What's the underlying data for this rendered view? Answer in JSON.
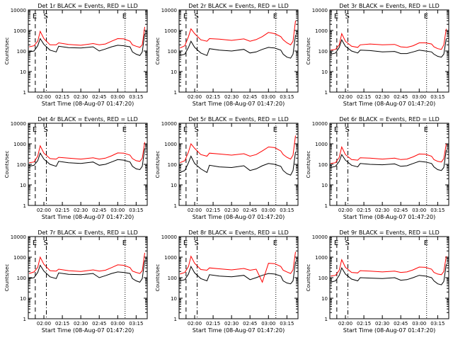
{
  "figure": {
    "start_time_label": "Start Time (08-Aug-07 01:47:20)"
  },
  "chart_data": {
    "type": "line",
    "layout": "3x3 grid",
    "y_scale": "log",
    "ylim": [
      1,
      10000
    ],
    "y_tick_labels": [
      "1",
      "10",
      "100",
      "1000",
      "10000"
    ],
    "ylabel": "Counts/sec",
    "xlabel": "Start Time (08-Aug-07 01:47:20)",
    "xlim": [
      "01:47:20",
      "03:24:00"
    ],
    "x_ticks": [
      "02:00",
      "02:15",
      "02:30",
      "02:45",
      "03:00",
      "03:15"
    ],
    "series_colors": {
      "events": "#000000",
      "lld": "#ff0000"
    },
    "markers": [
      {
        "label": "E",
        "time": "01:53",
        "style": "dashed"
      },
      {
        "label": "S",
        "time": "02:02",
        "style": "dash-dot"
      },
      {
        "label": "E",
        "time": "03:06",
        "style": "dotted"
      }
    ],
    "panels": [
      {
        "title": "Det 1r BLACK = Events, RED = LLD",
        "x": [
          "01:48",
          "01:52",
          "01:55",
          "01:57",
          "02:00",
          "02:05",
          "02:10",
          "02:12",
          "02:20",
          "02:30",
          "02:40",
          "02:45",
          "02:50",
          "02:55",
          "03:00",
          "03:05",
          "03:10",
          "03:12",
          "03:15",
          "03:18",
          "03:20",
          "03:22"
        ],
        "events": [
          90,
          100,
          180,
          400,
          210,
          110,
          90,
          170,
          145,
          140,
          160,
          100,
          125,
          160,
          190,
          180,
          160,
          90,
          70,
          60,
          90,
          700
        ],
        "lld": [
          160,
          180,
          300,
          900,
          400,
          200,
          200,
          250,
          210,
          190,
          230,
          200,
          220,
          300,
          400,
          390,
          300,
          200,
          170,
          150,
          200,
          1500
        ]
      },
      {
        "title": "Det 2r BLACK = Events, RED = LLD",
        "x": [
          "01:48",
          "01:52",
          "01:55",
          "01:57",
          "02:00",
          "02:05",
          "02:10",
          "02:12",
          "02:20",
          "02:30",
          "02:40",
          "02:45",
          "02:50",
          "02:55",
          "03:00",
          "03:05",
          "03:10",
          "03:12",
          "03:15",
          "03:18",
          "03:20",
          "03:22"
        ],
        "events": [
          60,
          70,
          150,
          300,
          150,
          80,
          60,
          130,
          110,
          100,
          120,
          80,
          90,
          120,
          150,
          140,
          110,
          70,
          50,
          45,
          70,
          600
        ],
        "lld": [
          140,
          180,
          500,
          1200,
          700,
          350,
          300,
          400,
          380,
          330,
          390,
          300,
          360,
          500,
          800,
          700,
          500,
          350,
          250,
          200,
          300,
          3000
        ]
      },
      {
        "title": "Det 3r BLACK = Events, RED = LLD",
        "x": [
          "01:48",
          "01:52",
          "01:55",
          "01:57",
          "02:00",
          "02:05",
          "02:10",
          "02:12",
          "02:20",
          "02:30",
          "02:40",
          "02:45",
          "02:50",
          "02:55",
          "03:00",
          "03:05",
          "03:10",
          "03:12",
          "03:15",
          "03:18",
          "03:20",
          "03:22"
        ],
        "events": [
          70,
          80,
          150,
          350,
          170,
          100,
          80,
          110,
          105,
          90,
          95,
          75,
          75,
          90,
          110,
          100,
          90,
          70,
          55,
          50,
          70,
          400
        ],
        "lld": [
          110,
          120,
          200,
          700,
          300,
          170,
          150,
          200,
          220,
          200,
          210,
          160,
          150,
          180,
          250,
          250,
          220,
          160,
          130,
          120,
          200,
          1200
        ]
      },
      {
        "title": "Det 4r BLACK = Events, RED = LLD",
        "x": [
          "01:48",
          "01:52",
          "01:55",
          "01:57",
          "02:00",
          "02:05",
          "02:10",
          "02:12",
          "02:20",
          "02:30",
          "02:40",
          "02:45",
          "02:50",
          "02:55",
          "03:00",
          "03:05",
          "03:10",
          "03:12",
          "03:15",
          "03:18",
          "03:20",
          "03:22"
        ],
        "events": [
          80,
          90,
          150,
          350,
          180,
          100,
          80,
          140,
          120,
          110,
          130,
          90,
          100,
          130,
          170,
          160,
          130,
          80,
          60,
          55,
          80,
          600
        ],
        "lld": [
          120,
          130,
          250,
          800,
          350,
          190,
          180,
          220,
          200,
          180,
          210,
          180,
          200,
          260,
          360,
          350,
          280,
          190,
          150,
          140,
          200,
          1200
        ]
      },
      {
        "title": "Det 5r BLACK = Events, RED = LLD",
        "x": [
          "01:48",
          "01:52",
          "01:55",
          "01:57",
          "02:00",
          "02:05",
          "02:10",
          "02:12",
          "02:20",
          "02:30",
          "02:40",
          "02:45",
          "02:50",
          "02:55",
          "03:00",
          "03:05",
          "03:10",
          "03:12",
          "03:15",
          "03:18",
          "03:20",
          "03:22"
        ],
        "events": [
          40,
          50,
          120,
          250,
          110,
          60,
          40,
          90,
          75,
          70,
          85,
          50,
          60,
          85,
          110,
          100,
          80,
          50,
          35,
          30,
          50,
          400
        ],
        "lld": [
          120,
          150,
          400,
          1000,
          600,
          300,
          250,
          350,
          320,
          280,
          330,
          250,
          300,
          450,
          700,
          650,
          450,
          300,
          220,
          180,
          280,
          2500
        ]
      },
      {
        "title": "Det 6r BLACK = Events, RED = LLD",
        "x": [
          "01:48",
          "01:52",
          "01:55",
          "01:57",
          "02:00",
          "02:05",
          "02:10",
          "02:12",
          "02:20",
          "02:30",
          "02:40",
          "02:45",
          "02:50",
          "02:55",
          "03:00",
          "03:05",
          "03:10",
          "03:12",
          "03:15",
          "03:18",
          "03:20",
          "03:22"
        ],
        "events": [
          70,
          80,
          140,
          300,
          160,
          90,
          75,
          110,
          100,
          95,
          105,
          80,
          85,
          110,
          140,
          130,
          110,
          75,
          55,
          50,
          70,
          500
        ],
        "lld": [
          110,
          120,
          220,
          700,
          300,
          170,
          160,
          210,
          200,
          180,
          200,
          170,
          180,
          230,
          320,
          310,
          250,
          170,
          140,
          130,
          190,
          1000
        ]
      },
      {
        "title": "Det 7r BLACK = Events, RED = LLD",
        "x": [
          "01:48",
          "01:52",
          "01:55",
          "01:57",
          "02:00",
          "02:05",
          "02:10",
          "02:12",
          "02:20",
          "02:30",
          "02:40",
          "02:45",
          "02:50",
          "02:55",
          "03:00",
          "03:05",
          "03:10",
          "03:12",
          "03:15",
          "03:18",
          "03:20",
          "03:22"
        ],
        "events": [
          90,
          100,
          180,
          400,
          210,
          110,
          90,
          170,
          145,
          140,
          160,
          100,
          125,
          160,
          190,
          180,
          160,
          90,
          70,
          60,
          90,
          700
        ],
        "lld": [
          160,
          190,
          320,
          1000,
          450,
          220,
          210,
          260,
          220,
          200,
          240,
          210,
          230,
          310,
          420,
          400,
          310,
          210,
          180,
          160,
          220,
          1600
        ]
      },
      {
        "title": "Det 8r BLACK = Events, RED = LLD",
        "x": [
          "01:48",
          "01:52",
          "01:55",
          "01:57",
          "02:00",
          "02:05",
          "02:10",
          "02:12",
          "02:20",
          "02:30",
          "02:40",
          "02:45",
          "02:50",
          "02:55",
          "03:00",
          "03:05",
          "03:10",
          "03:12",
          "03:15",
          "03:18",
          "03:20",
          "03:22"
        ],
        "events": [
          70,
          80,
          150,
          350,
          170,
          90,
          70,
          140,
          120,
          110,
          130,
          80,
          100,
          130,
          160,
          150,
          120,
          70,
          55,
          50,
          70,
          600
        ],
        "lld": [
          150,
          180,
          350,
          1100,
          500,
          250,
          230,
          300,
          270,
          240,
          280,
          230,
          260,
          60,
          500,
          480,
          350,
          230,
          190,
          160,
          240,
          1800
        ]
      },
      {
        "title": "Det 9r BLACK = Events, RED = LLD",
        "x": [
          "01:48",
          "01:52",
          "01:55",
          "01:57",
          "02:00",
          "02:05",
          "02:10",
          "02:12",
          "02:20",
          "02:30",
          "02:40",
          "02:45",
          "02:50",
          "02:55",
          "03:00",
          "03:05",
          "03:10",
          "03:12",
          "03:15",
          "03:18",
          "03:20",
          "03:22"
        ],
        "events": [
          60,
          70,
          130,
          300,
          150,
          85,
          70,
          100,
          95,
          90,
          100,
          75,
          80,
          100,
          130,
          120,
          100,
          70,
          50,
          45,
          65,
          450
        ],
        "lld": [
          120,
          130,
          230,
          750,
          320,
          180,
          170,
          220,
          210,
          190,
          210,
          180,
          190,
          240,
          330,
          320,
          260,
          180,
          150,
          140,
          200,
          1100
        ]
      }
    ]
  }
}
